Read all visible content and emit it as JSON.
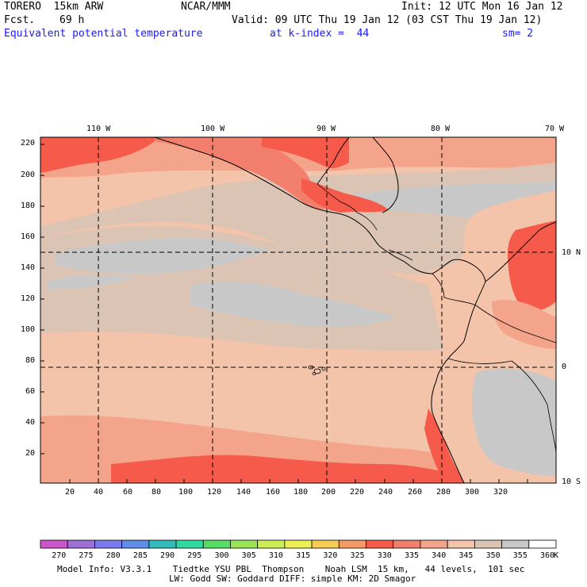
{
  "header": {
    "model": "TORERO  15km ARW",
    "org": "NCAR/MMM",
    "init": "Init: 12 UTC Mon 16 Jan 12",
    "fcst_label": "Fcst.",
    "fcst_value": "69 h",
    "valid": "Valid: 09 UTC Thu 19 Jan 12 (03 CST Thu 19 Jan 12)",
    "field": "Equivalent potential temperature",
    "level": "at k-index =  44",
    "smoothing": "sm= 2"
  },
  "map": {
    "lon_labels": [
      "110 W",
      "100 W",
      "90 W",
      "80 W",
      "70 W"
    ],
    "lat_labels": [
      "10 N",
      "0",
      "10 S"
    ],
    "x_ticks": [
      "20",
      "40",
      "60",
      "80",
      "100",
      "120",
      "140",
      "160",
      "180",
      "200",
      "220",
      "240",
      "260",
      "280",
      "300",
      "320"
    ],
    "y_ticks": [
      "20",
      "40",
      "60",
      "80",
      "100",
      "120",
      "140",
      "160",
      "180",
      "200",
      "220"
    ]
  },
  "colorbar": {
    "unit": "K",
    "labels": [
      "270",
      "275",
      "280",
      "285",
      "290",
      "295",
      "300",
      "305",
      "310",
      "315",
      "320",
      "325",
      "330",
      "335",
      "340",
      "345",
      "350",
      "355",
      "360"
    ],
    "colors": [
      "#cc55cc",
      "#9f6fd8",
      "#7b7bef",
      "#5f8fe8",
      "#33bbbb",
      "#33d8a0",
      "#55dd66",
      "#99e455",
      "#ccee55",
      "#eeee55",
      "#f7cc55",
      "#f79966",
      "#f55a4a",
      "#f27f6e",
      "#f5a48c",
      "#f3c4aa",
      "#dcc4b4",
      "#c8c8c8",
      "#ffffff"
    ]
  },
  "footer": {
    "line1": "Model Info: V3.3.1    Tiedtke YSU PBL  Thompson    Noah LSM  15 km,   44 levels,  101 sec",
    "line2": "LW: Godd SW: Goddard DIFF: simple KM: 2D Smagor"
  }
}
